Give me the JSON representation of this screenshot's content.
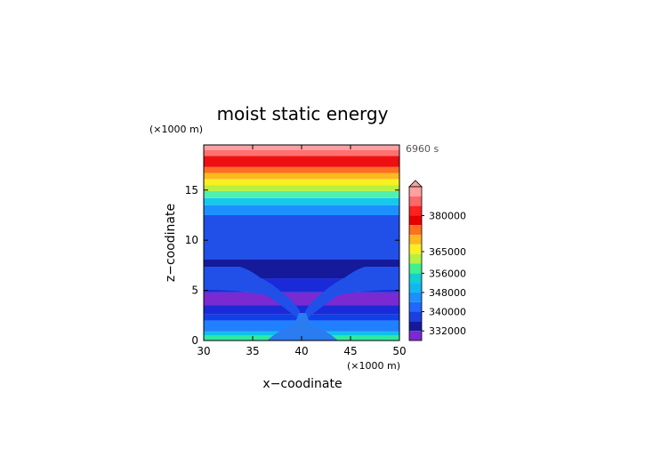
{
  "chart_data": {
    "type": "heatmap",
    "title": "moist static energy",
    "xlabel": "x−coodinate",
    "ylabel": "z−coodinate",
    "x_unit": "(×1000 m)",
    "y_unit": "(×1000 m)",
    "time_stamp": "6960 s",
    "xlim": [
      30,
      50
    ],
    "ylim": [
      0,
      19.5
    ],
    "x_ticks": [
      "30",
      "35",
      "40",
      "45",
      "50"
    ],
    "x_tick_values": [
      30,
      35,
      40,
      45,
      50
    ],
    "y_ticks": [
      "0",
      "5",
      "10",
      "15"
    ],
    "y_tick_values": [
      0,
      5,
      10,
      15
    ],
    "colorbar": {
      "labels": [
        "380000",
        "365000",
        "356000",
        "348000",
        "340000",
        "332000"
      ],
      "label_values": [
        380000,
        365000,
        356000,
        348000,
        340000,
        332000
      ]
    },
    "layers": [
      {
        "z": [
          0,
          0.5
        ],
        "color": "#30e8a0"
      },
      {
        "z": [
          0.5,
          0.9
        ],
        "color": "#10c0e8"
      },
      {
        "z": [
          0.9,
          2.0
        ],
        "color": "#2080ff"
      },
      {
        "z": [
          2.0,
          2.6
        ],
        "color": "#1040e8"
      },
      {
        "z": [
          2.6,
          3.5
        ],
        "color": "#1a2ad8"
      },
      {
        "z": [
          3.5,
          4.8
        ],
        "color": "#7a2ad0"
      },
      {
        "z": [
          4.8,
          6.2
        ],
        "color": "#1a2ad8"
      },
      {
        "z": [
          6.2,
          8.1
        ],
        "color": "#141a9a"
      },
      {
        "z": [
          8.1,
          12.5
        ],
        "color": "#2050e8"
      },
      {
        "z": [
          12.5,
          13.5
        ],
        "color": "#1c90ff"
      },
      {
        "z": [
          13.5,
          14.2
        ],
        "color": "#14c8f0"
      },
      {
        "z": [
          14.2,
          14.9
        ],
        "color": "#50f0b0"
      },
      {
        "z": [
          14.9,
          15.5
        ],
        "color": "#b8f040"
      },
      {
        "z": [
          15.5,
          16.1
        ],
        "color": "#f8f020"
      },
      {
        "z": [
          16.1,
          16.7
        ],
        "color": "#ffb820"
      },
      {
        "z": [
          16.7,
          17.3
        ],
        "color": "#ff7020"
      },
      {
        "z": [
          17.3,
          18.4
        ],
        "color": "#ee1010"
      },
      {
        "z": [
          18.4,
          19.0
        ],
        "color": "#ff7070"
      },
      {
        "z": [
          19.0,
          19.5
        ],
        "color": "#ffa0a0"
      }
    ],
    "colorbar_colors": [
      "#ffa0a0",
      "#ff6868",
      "#ff2020",
      "#e80000",
      "#ff7020",
      "#ffb820",
      "#f8f020",
      "#b8f040",
      "#40f090",
      "#10d0d0",
      "#10b8f0",
      "#1c90ff",
      "#2068ff",
      "#1a40e0",
      "#141a9a",
      "#7a2ad0"
    ],
    "grid": false
  }
}
